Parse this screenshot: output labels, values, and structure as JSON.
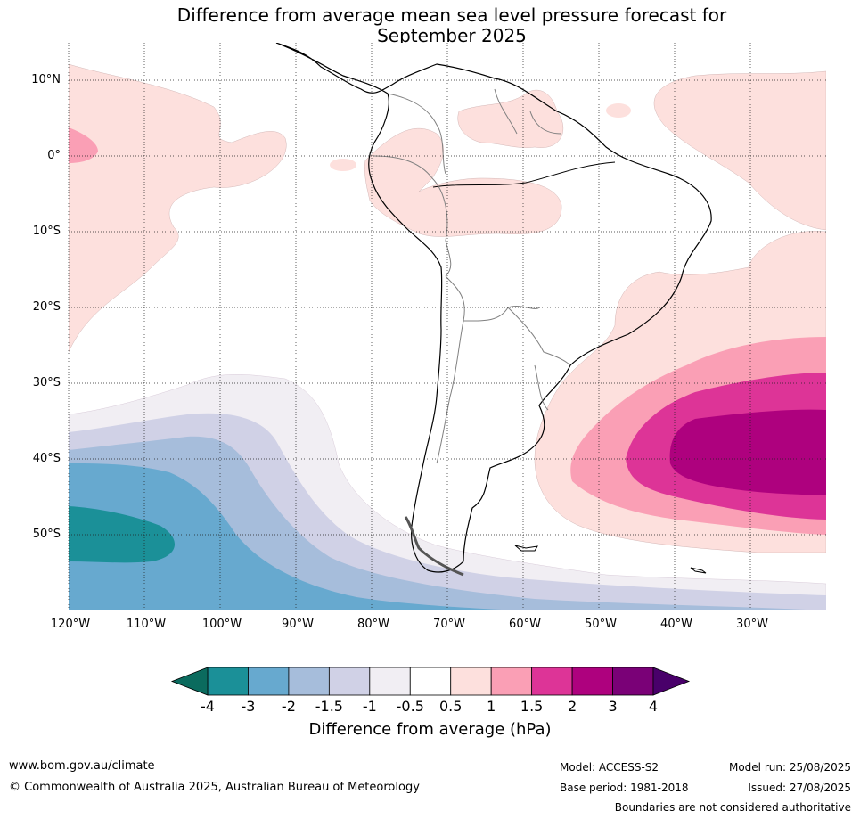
{
  "title": {
    "line1": "Difference from average mean sea level pressure forecast for",
    "line2": "September 2025"
  },
  "map": {
    "region": "South America",
    "lat_labels": [
      {
        "lat": 10,
        "text": "10°N"
      },
      {
        "lat": 0,
        "text": "0°"
      },
      {
        "lat": -10,
        "text": "10°S"
      },
      {
        "lat": -20,
        "text": "20°S"
      },
      {
        "lat": -30,
        "text": "30°S"
      },
      {
        "lat": -40,
        "text": "40°S"
      },
      {
        "lat": -50,
        "text": "50°S"
      }
    ],
    "lon_labels": [
      {
        "lon": -120,
        "text": "120°W"
      },
      {
        "lon": -110,
        "text": "110°W"
      },
      {
        "lon": -100,
        "text": "100°W"
      },
      {
        "lon": -90,
        "text": "90°W"
      },
      {
        "lon": -80,
        "text": "80°W"
      },
      {
        "lon": -70,
        "text": "70°W"
      },
      {
        "lon": -60,
        "text": "60°W"
      },
      {
        "lon": -50,
        "text": "50°W"
      },
      {
        "lon": -40,
        "text": "40°W"
      },
      {
        "lon": -30,
        "text": "30°W"
      }
    ],
    "extent": {
      "lon_min": -120,
      "lon_max": -20,
      "lat_min": -60,
      "lat_max": 15
    },
    "gridlines": true
  },
  "colorbar": {
    "ticks": [
      "-4",
      "-3",
      "-2",
      "-1.5",
      "-1",
      "-0.5",
      "0.5",
      "1",
      "1.5",
      "2",
      "3",
      "4"
    ],
    "colors": [
      "#1b9098",
      "#67a9cf",
      "#a6bddb",
      "#d0d1e6",
      "#f1eef3",
      "#ffffff",
      "#fde0dd",
      "#fa9fb5",
      "#dd3497",
      "#ae017e",
      "#7a0177"
    ],
    "under_color": "#0b6b5e",
    "over_color": "#49006a",
    "label": "Difference from average (hPa)"
  },
  "footer": {
    "website": "www.bom.gov.au/climate",
    "copyright": "© Commonwealth of Australia 2025, Australian Bureau of Meteorology",
    "model": "Model: ACCESS-S2",
    "base_period": "Base period: 1981-2018",
    "model_run": "Model run: 25/08/2025",
    "issued": "Issued: 27/08/2025",
    "disclaimer": "Boundaries are not considered authoritative"
  }
}
